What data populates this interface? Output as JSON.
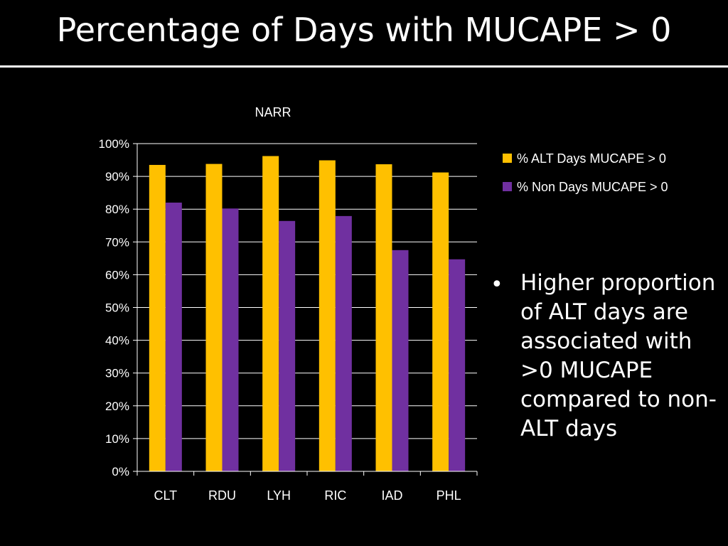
{
  "slide": {
    "title": "Percentage of Days with MUCAPE > 0",
    "bullet_text": "Higher proportion of ALT days are associated with >0 MUCAPE compared to non-ALT days",
    "bullet_glyph": "•"
  },
  "chart_data": {
    "type": "bar",
    "title": "NARR",
    "xlabel": "",
    "ylabel": "",
    "ylim": [
      0,
      100
    ],
    "yticks": [
      "0%",
      "10%",
      "20%",
      "30%",
      "40%",
      "50%",
      "60%",
      "70%",
      "80%",
      "90%",
      "100%"
    ],
    "grid": true,
    "legend_position": "right",
    "categories": [
      "CLT",
      "RDU",
      "LYH",
      "RIC",
      "IAD",
      "PHL"
    ],
    "series": [
      {
        "name": "% ALT Days MUCAPE > 0",
        "color": "#FFC000",
        "values": [
          93.5,
          93.8,
          96.2,
          94.9,
          93.7,
          91.2
        ]
      },
      {
        "name": "% Non Days MUCAPE > 0",
        "color": "#7030A0",
        "values": [
          82,
          80.2,
          76.4,
          77.9,
          67.5,
          64.7
        ]
      }
    ]
  }
}
